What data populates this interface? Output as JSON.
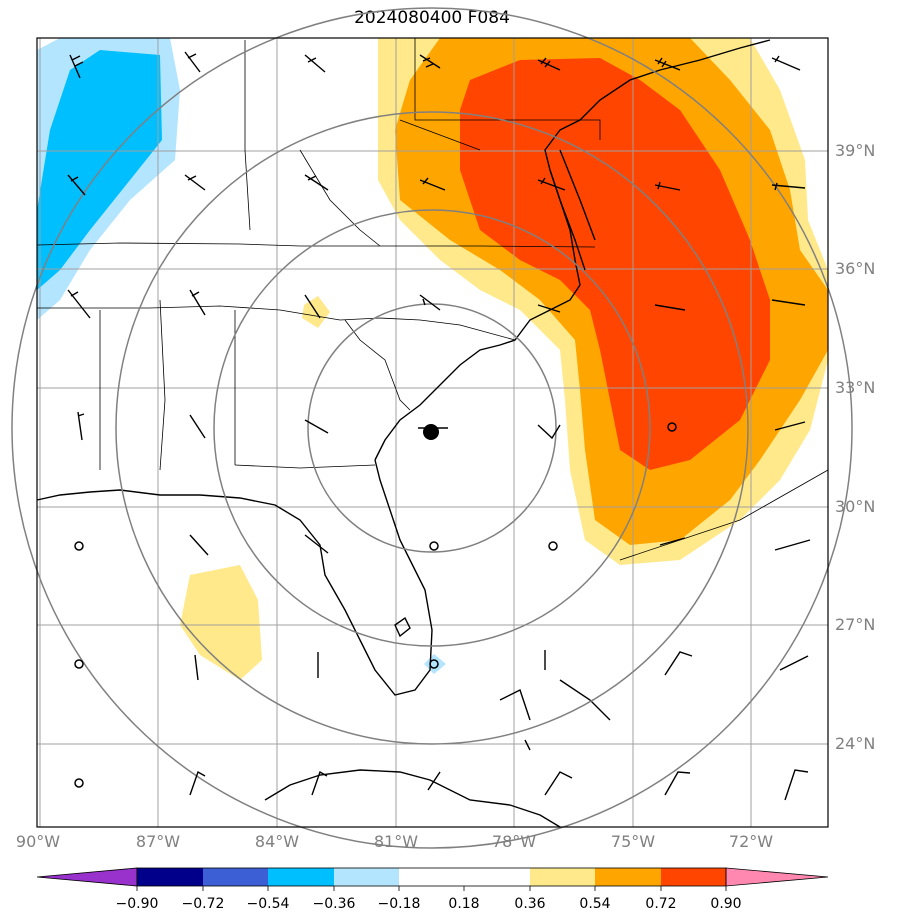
{
  "title": "2024080400 F084",
  "lat_labels": [
    "39°N",
    "36°N",
    "33°N",
    "30°N",
    "27°N",
    "24°N"
  ],
  "lon_labels": [
    "90°W",
    "87°W",
    "84°W",
    "81°W",
    "78°W",
    "75°W",
    "72°W"
  ],
  "colorbar": {
    "ticks": [
      "−0.90",
      "−0.72",
      "−0.54",
      "−0.36",
      "−0.18",
      "0.18",
      "0.36",
      "0.54",
      "0.72",
      "0.90"
    ],
    "colors": [
      "#9932cc",
      "#00008b",
      "#3c5fd6",
      "#00bfff",
      "#b3e5ff",
      "#ffffff",
      "#ffe98a",
      "#ffa500",
      "#ff4500",
      "#b22222",
      "#ff88b0"
    ]
  },
  "colors": {
    "pos_low": "#ffe98a",
    "pos_mid": "#ffa500",
    "pos_high": "#ff4500",
    "neg_low": "#b3e5ff",
    "neg_mid": "#00bfff",
    "grid": "#a0a0a0",
    "range_ring": "#808080"
  }
}
